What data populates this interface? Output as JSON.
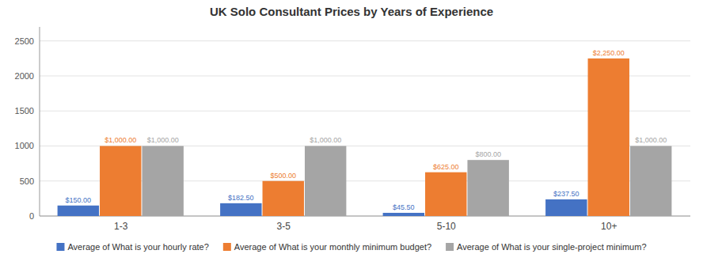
{
  "chart_data": {
    "type": "bar",
    "title": "UK Solo Consultant Prices by Years of Experience",
    "categories": [
      "1-3",
      "3-5",
      "5-10",
      "10+"
    ],
    "series": [
      {
        "name": "Average of What is your hourly rate?",
        "color": "#4472C4",
        "values": [
          150.0,
          182.5,
          45.5,
          237.5
        ],
        "value_labels": [
          "$150.00",
          "$182.50",
          "$45.50",
          "$237.50"
        ]
      },
      {
        "name": "Average of What is your monthly minimum budget?",
        "color": "#ED7D31",
        "values": [
          1000.0,
          500.0,
          625.0,
          2250.0
        ],
        "value_labels": [
          "$1,000.00",
          "$500.00",
          "$625.00",
          "$2,250.00"
        ]
      },
      {
        "name": "Average of What is your single-project minimum?",
        "color": "#A5A5A5",
        "values": [
          1000.0,
          1000.0,
          800.0,
          1000.0
        ],
        "value_labels": [
          "$1,000.00",
          "$1,000.00",
          "$800.00",
          "$1,000.00"
        ]
      }
    ],
    "ylim": [
      0,
      2700
    ],
    "yticks": [
      0,
      500,
      1000,
      1500,
      2000,
      2500
    ],
    "grid": true,
    "legend": "bottom",
    "data_labels": true
  }
}
